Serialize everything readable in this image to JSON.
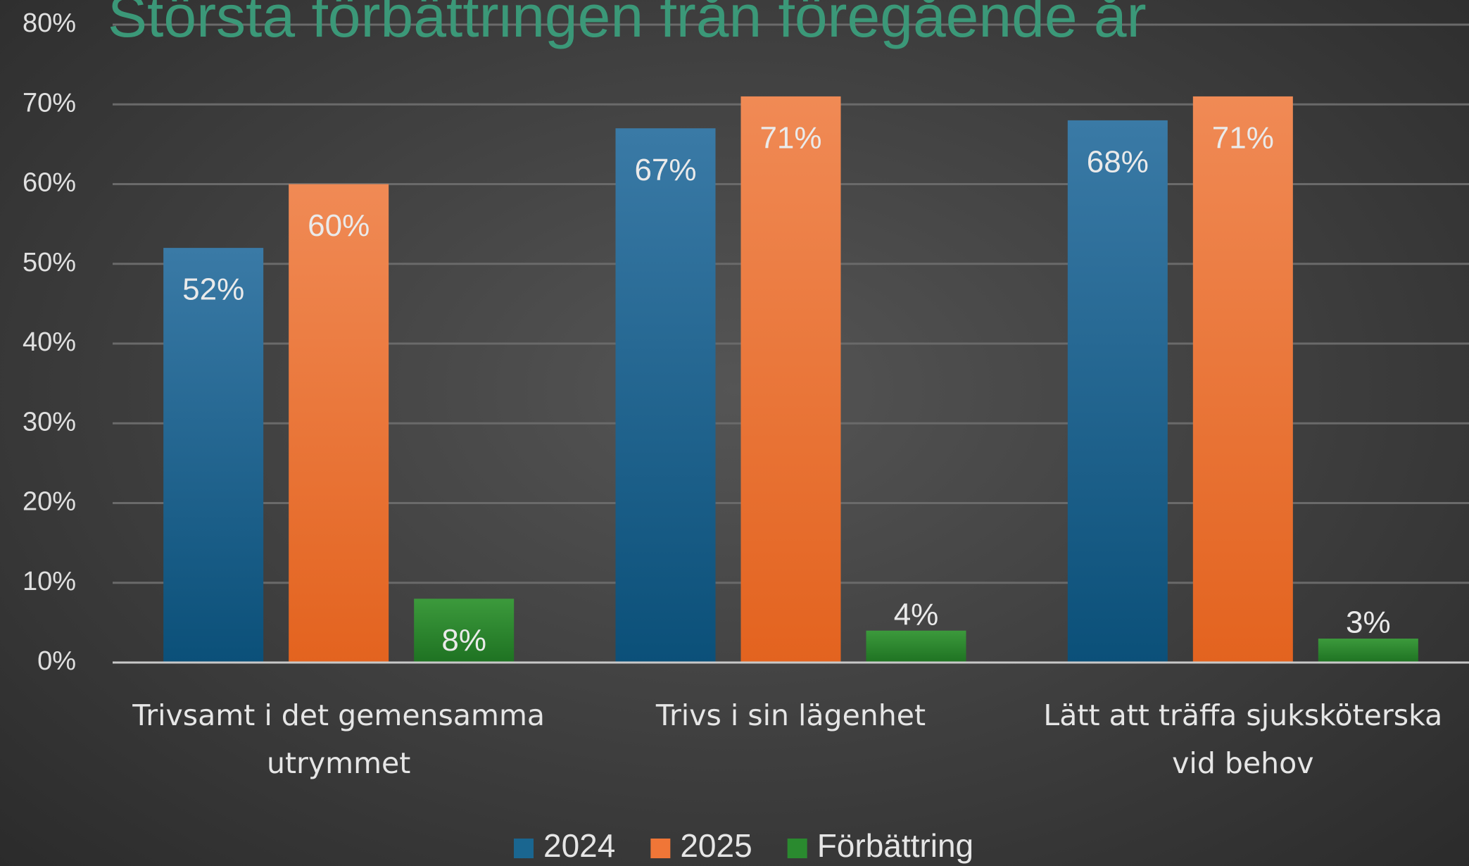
{
  "chart_data": {
    "type": "bar",
    "title": "Största förbättringen från föregående år",
    "categories": [
      "Trivsamt i det gemensamma utrymmet",
      "Trivs i sin lägenhet",
      "Lätt att träffa sjuksköterska vid behov"
    ],
    "series": [
      {
        "name": "2024",
        "color": "#1a6690",
        "values": [
          52,
          67,
          68
        ],
        "value_labels": [
          "52%",
          "67%",
          "68%"
        ]
      },
      {
        "name": "2025",
        "color": "#f07637",
        "values": [
          60,
          71,
          71
        ],
        "value_labels": [
          "60%",
          "71%",
          "71%"
        ]
      },
      {
        "name": "Förbättring",
        "color": "#2a8a2f",
        "values": [
          8,
          4,
          3
        ],
        "value_labels": [
          "8%",
          "4%",
          "3%"
        ]
      }
    ],
    "ylim": [
      0,
      80
    ],
    "yticks": [
      {
        "value": 0,
        "label": "0%"
      },
      {
        "value": 10,
        "label": "10%"
      },
      {
        "value": 20,
        "label": "20%"
      },
      {
        "value": 30,
        "label": "30%"
      },
      {
        "value": 40,
        "label": "40%"
      },
      {
        "value": 50,
        "label": "50%"
      },
      {
        "value": 60,
        "label": "60%"
      },
      {
        "value": 70,
        "label": "70%"
      },
      {
        "value": 80,
        "label": "80%"
      }
    ],
    "grid": true,
    "legend": "bottom"
  }
}
